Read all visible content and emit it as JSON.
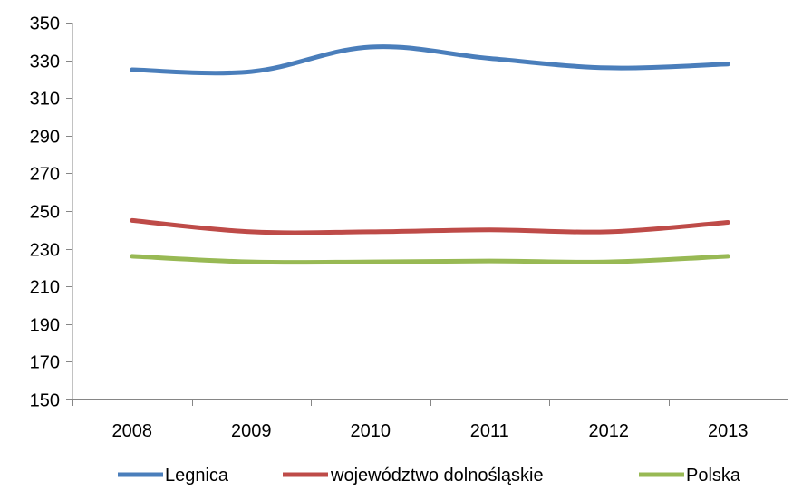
{
  "chart_data": {
    "type": "line",
    "categories": [
      "2008",
      "2009",
      "2010",
      "2011",
      "2012",
      "2013"
    ],
    "ylim": [
      150,
      350
    ],
    "yticks": [
      150,
      170,
      190,
      210,
      230,
      250,
      270,
      290,
      310,
      330,
      350
    ],
    "grid": false,
    "legend_position": "bottom",
    "series": [
      {
        "name": "Legnica",
        "color": "#4A7EBB",
        "values": [
          325,
          324,
          337,
          331,
          326,
          328
        ]
      },
      {
        "name": "województwo dolnośląskie",
        "color": "#BE4B48",
        "values": [
          245,
          239,
          239,
          240,
          239,
          244
        ]
      },
      {
        "name": "Polska",
        "color": "#98B954",
        "values": [
          226,
          223,
          223,
          223.5,
          223,
          226
        ]
      }
    ]
  }
}
